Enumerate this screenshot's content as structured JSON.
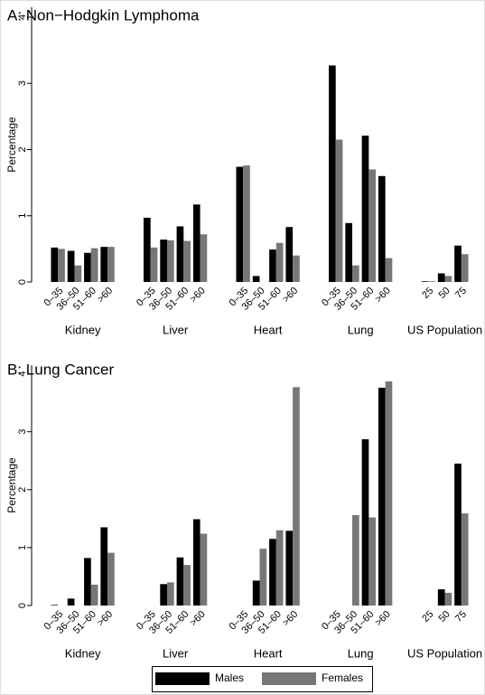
{
  "chart_data": [
    {
      "type": "bar",
      "title": "A: Non−Hodgkin Lymphoma",
      "y_label": "Percentage",
      "groups": [
        {
          "name": "Kidney",
          "categories": [
            "0–35",
            "36–50",
            "51–60",
            ">60"
          ]
        },
        {
          "name": "Liver",
          "categories": [
            "0–35",
            "36–50",
            "51–60",
            ">60"
          ]
        },
        {
          "name": "Heart",
          "categories": [
            "0–35",
            "36–50",
            "51–60",
            ">60"
          ]
        },
        {
          "name": "Lung",
          "categories": [
            "0–35",
            "36–50",
            "51–60",
            ">60"
          ]
        },
        {
          "name": "US Population",
          "categories": [
            "25",
            "50",
            "75"
          ]
        }
      ],
      "series": [
        {
          "name": "Males",
          "color": "#000000",
          "values": [
            0.52,
            0.47,
            0.44,
            0.53,
            0.97,
            0.64,
            0.84,
            1.17,
            1.74,
            0.09,
            0.49,
            0.83,
            3.27,
            0.89,
            2.21,
            1.6,
            0.01,
            0.13,
            0.55
          ]
        },
        {
          "name": "Females",
          "color": "#777777",
          "values": [
            0.5,
            0.25,
            0.51,
            0.53,
            0.52,
            0.63,
            0.62,
            0.72,
            1.76,
            0,
            0.59,
            0.4,
            2.15,
            0.25,
            1.7,
            0.36,
            0.01,
            0.09,
            0.42
          ]
        }
      ],
      "ylim": [
        0,
        4.15
      ],
      "yticks": [
        0,
        1,
        2,
        3,
        4
      ],
      "legend": "bottom"
    },
    {
      "type": "bar",
      "title": "B: Lung Cancer",
      "y_label": "Percentage",
      "groups": [
        {
          "name": "Kidney",
          "categories": [
            "0–35",
            "36–50",
            "51–60",
            ">60"
          ]
        },
        {
          "name": "Liver",
          "categories": [
            "0–35",
            "36–50",
            "51–60",
            ">60"
          ]
        },
        {
          "name": "Heart",
          "categories": [
            "0–35",
            "36–50",
            "51–60",
            ">60"
          ]
        },
        {
          "name": "Lung",
          "categories": [
            "0–35",
            "36–50",
            "51–60",
            ">60"
          ]
        },
        {
          "name": "US Population",
          "categories": [
            "25",
            "50",
            "75"
          ]
        }
      ],
      "series": [
        {
          "name": "Males",
          "color": "#000000",
          "values": [
            0.01,
            0.12,
            0.82,
            1.35,
            0,
            0.37,
            0.83,
            1.49,
            0,
            0.43,
            1.15,
            1.29,
            0,
            0,
            2.87,
            3.76,
            0,
            0.28,
            2.45
          ]
        },
        {
          "name": "Females",
          "color": "#777777",
          "values": [
            0,
            0,
            0.36,
            0.91,
            0,
            0.4,
            0.7,
            1.24,
            0,
            0.98,
            1.3,
            3.77,
            0,
            1.56,
            1.52,
            3.87,
            0,
            0.22,
            1.59
          ]
        }
      ],
      "ylim": [
        0,
        4.15
      ],
      "yticks": [
        0,
        1,
        2,
        3,
        4
      ]
    }
  ]
}
